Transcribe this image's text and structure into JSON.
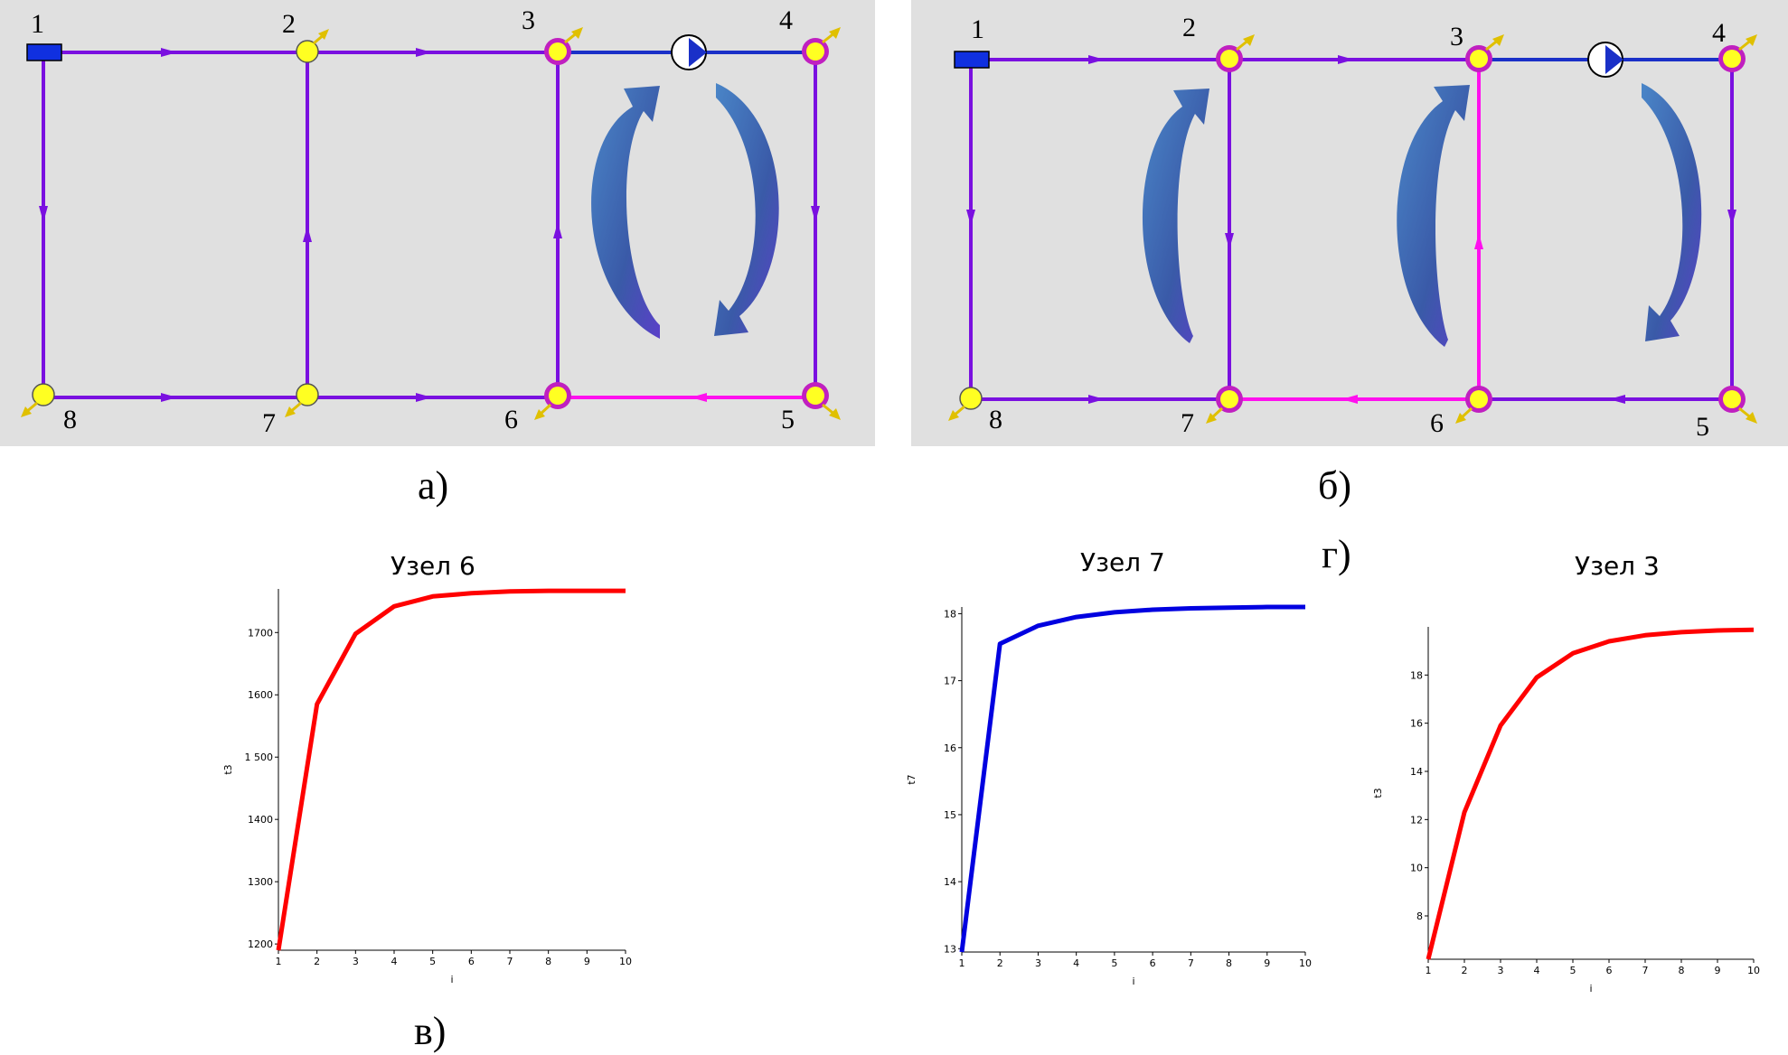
{
  "schemes": [
    {
      "id": "a",
      "caption": "а)",
      "nodes": [
        {
          "label": "1",
          "type": "source"
        },
        {
          "label": "2",
          "type": "consumer"
        },
        {
          "label": "3",
          "type": "consumer-ringed"
        },
        {
          "label": "4",
          "type": "consumer-ringed"
        },
        {
          "label": "5",
          "type": "consumer-ringed"
        },
        {
          "label": "6",
          "type": "consumer-ringed"
        },
        {
          "label": "7",
          "type": "consumer"
        },
        {
          "label": "8",
          "type": "consumer"
        }
      ]
    },
    {
      "id": "b",
      "caption": "б)",
      "nodes": [
        {
          "label": "1",
          "type": "source"
        },
        {
          "label": "2",
          "type": "consumer-ringed"
        },
        {
          "label": "3",
          "type": "consumer-ringed"
        },
        {
          "label": "4",
          "type": "consumer-ringed"
        },
        {
          "label": "5",
          "type": "consumer-ringed"
        },
        {
          "label": "6",
          "type": "consumer-ringed"
        },
        {
          "label": "7",
          "type": "consumer-ringed"
        },
        {
          "label": "8",
          "type": "consumer"
        }
      ]
    }
  ],
  "colors": {
    "pipe": "#7a10e0",
    "pump_pipe": "#1a30c8",
    "reverse_pipe": "#ff10ee",
    "node": "#ffff22",
    "ring": "#c020c0",
    "source": "#1030e0",
    "circulation_arrow": "#3a70c0",
    "red_curve": "#ff0000",
    "blue_curve": "#0000e0"
  },
  "captions": {
    "v": "в)",
    "g": "г)"
  },
  "chart_data": [
    {
      "type": "line",
      "title": "Узел 6",
      "xlabel": "i",
      "ylabel": "t3",
      "x": [
        1,
        2,
        3,
        4,
        5,
        6,
        7,
        8,
        9,
        10
      ],
      "series": [
        {
          "values": [
            1190,
            1585,
            1698,
            1742,
            1758,
            1763,
            1766,
            1767,
            1767,
            1767
          ]
        }
      ],
      "xlim": [
        1,
        10
      ],
      "ylim": [
        1190,
        1770
      ],
      "yticks": [
        1200,
        1300,
        1400,
        1500,
        1600,
        1700
      ],
      "ytick_labels": [
        "1200",
        "1300",
        "1400",
        "1 500",
        "1600",
        "1700"
      ],
      "xticks": [
        1,
        2,
        3,
        4,
        5,
        6,
        7,
        8,
        9,
        10
      ],
      "color": "#ff0000",
      "grid": false
    },
    {
      "type": "line",
      "title": "Узел 7",
      "xlabel": "i",
      "ylabel": "t7",
      "x": [
        1,
        2,
        3,
        4,
        5,
        6,
        7,
        8,
        9,
        10
      ],
      "series": [
        {
          "values": [
            12.95,
            17.55,
            17.82,
            17.95,
            18.02,
            18.06,
            18.08,
            18.09,
            18.1,
            18.1
          ]
        }
      ],
      "xlim": [
        1,
        10
      ],
      "ylim": [
        12.95,
        18.1
      ],
      "yticks": [
        13,
        14,
        15,
        16,
        17,
        18
      ],
      "ytick_labels": [
        "13",
        "14",
        "15",
        "16",
        "17",
        "18"
      ],
      "xticks": [
        1,
        2,
        3,
        4,
        5,
        6,
        7,
        8,
        9,
        10
      ],
      "color": "#0000e0",
      "grid": false
    },
    {
      "type": "line",
      "title": "Узел 3",
      "xlabel": "i",
      "ylabel": "t3",
      "x": [
        1,
        2,
        3,
        4,
        5,
        6,
        7,
        8,
        9,
        10
      ],
      "series": [
        {
          "values": [
            6.2,
            12.3,
            15.9,
            17.9,
            18.9,
            19.4,
            19.65,
            19.78,
            19.85,
            19.88
          ]
        }
      ],
      "xlim": [
        1,
        10
      ],
      "ylim": [
        6.2,
        20.0
      ],
      "yticks": [
        8,
        10,
        12,
        14,
        16,
        18
      ],
      "ytick_labels": [
        "8",
        "10",
        "12",
        "14",
        "16",
        "18"
      ],
      "xticks": [
        1,
        2,
        3,
        4,
        5,
        6,
        7,
        8,
        9,
        10
      ],
      "color": "#ff0000",
      "grid": false
    }
  ]
}
